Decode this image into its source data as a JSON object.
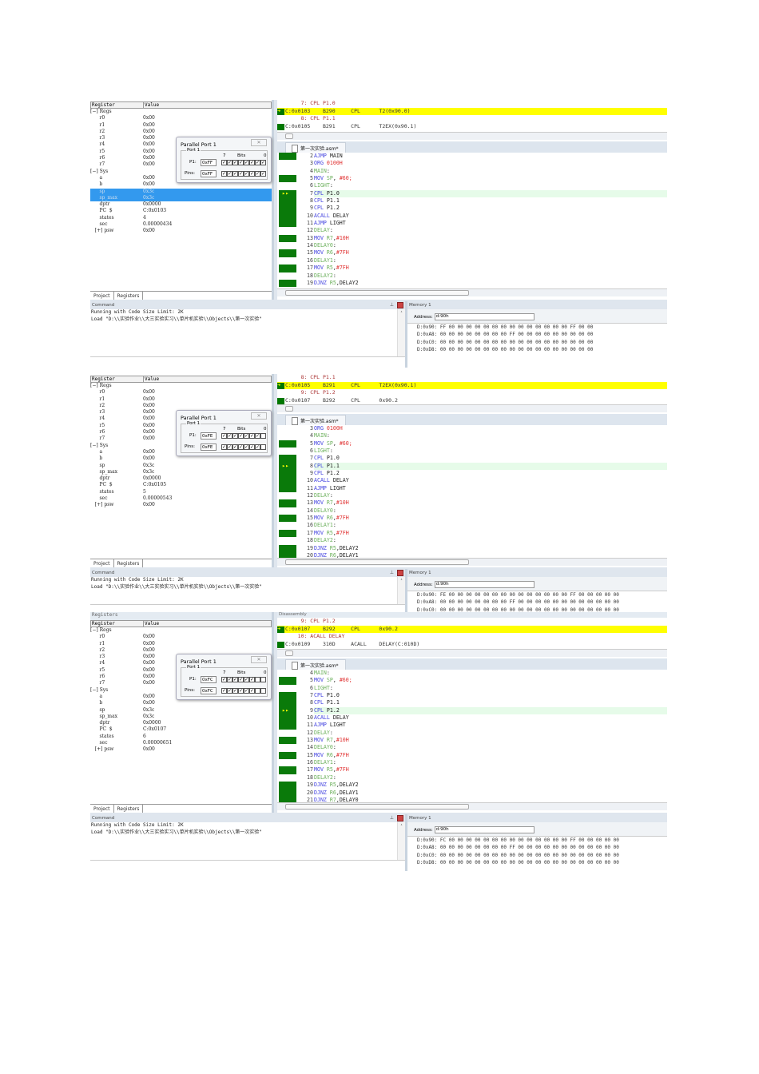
{
  "shared": {
    "register_title": "Registers",
    "register_col": "Register",
    "value_col": "Value",
    "tab_project": "Project",
    "tab_registers": "Registers",
    "parallel_port_title": "Parallel Port 1",
    "port_group": "Port 1",
    "p1_label": "P1:",
    "pins_label": "Pins:",
    "bits_label": "Bits",
    "bit_high": "7",
    "bit_low": "0",
    "editor_tab": "第一次实验.asm*",
    "command_title": "Command",
    "command_lines": [
      "Running with Code Size Limit: 2K",
      "Load \"D:\\\\实验作业\\\\大三实验实习\\\\单片机实验\\\\Objects\\\\第一次实验\""
    ],
    "memory_title": "Memory 1",
    "address_label": "Address:",
    "address_value": "d:90h",
    "disassembly_title": "Disassembly",
    "colors": {
      "current_line": "#ffff00",
      "gutter_exec": "#0a7a0a",
      "keyword": "#4646e0",
      "label": "#6cb05c",
      "number": "#e03030",
      "selection": "#3399ee"
    }
  },
  "panels": [
    {
      "registers": [
        {
          "name": "Regs",
          "value": "",
          "level": 0,
          "expander": "−"
        },
        {
          "name": "r0",
          "value": "0x00",
          "level": 1
        },
        {
          "name": "r1",
          "value": "0x00",
          "level": 1
        },
        {
          "name": "r2",
          "value": "0x00",
          "level": 1
        },
        {
          "name": "r3",
          "value": "0x00",
          "level": 1
        },
        {
          "name": "r4",
          "value": "0x00",
          "level": 1
        },
        {
          "name": "r5",
          "value": "0x00",
          "level": 1
        },
        {
          "name": "r6",
          "value": "0x00",
          "level": 1
        },
        {
          "name": "r7",
          "value": "0x00",
          "level": 1
        },
        {
          "name": "Sys",
          "value": "",
          "level": 0,
          "expander": "−"
        },
        {
          "name": "a",
          "value": "0x00",
          "level": 1
        },
        {
          "name": "b",
          "value": "0x00",
          "level": 1
        },
        {
          "name": "sp",
          "value": "0x3c",
          "level": 1,
          "selected": true
        },
        {
          "name": "sp_max",
          "value": "0x3c",
          "level": 1,
          "selected": true
        },
        {
          "name": "dptr",
          "value": "0x0000",
          "level": 1
        },
        {
          "name": "PC  $",
          "value": "C:0x0103",
          "level": 1
        },
        {
          "name": "states",
          "value": "4",
          "level": 1
        },
        {
          "name": "sec",
          "value": "0.00000434",
          "level": 1
        },
        {
          "name": "psw",
          "value": "0x00",
          "level": 1,
          "expander": "+"
        }
      ],
      "port": {
        "p1": "0xFF",
        "pins": "0xFF",
        "p1_bits": [
          true,
          true,
          true,
          true,
          true,
          true,
          true,
          true
        ],
        "pin_bits": [
          true,
          true,
          true,
          true,
          true,
          true,
          true,
          true
        ]
      },
      "disassembly": [
        {
          "text": "     7: CPL P1.0",
          "kind": "src"
        },
        {
          "text": "C:0x0103    B290     CPL      T2(0x90.0)",
          "kind": "cur"
        },
        {
          "text": "     8: CPL P1.1",
          "kind": "src"
        },
        {
          "text": "C:0x0105    B291     CPL      T2EX(0x90.1)",
          "kind": "asm"
        }
      ],
      "code": [
        {
          "n": "2",
          "text": "AJMP MAIN",
          "exec": true
        },
        {
          "n": "3",
          "text": "ORG 0100H",
          "exec": false
        },
        {
          "n": "4",
          "text": "MAIN:",
          "exec": false
        },
        {
          "n": "5",
          "text": "MOV SP, #60;",
          "exec": true
        },
        {
          "n": "6",
          "text": "LIGHT:",
          "exec": false
        },
        {
          "n": "7",
          "text": "CPL P1.0",
          "exec": true,
          "current": true
        },
        {
          "n": "8",
          "text": "CPL P1.1",
          "exec": true
        },
        {
          "n": "9",
          "text": "CPL P1.2",
          "exec": true
        },
        {
          "n": "10",
          "text": "ACALL DELAY",
          "exec": true
        },
        {
          "n": "11",
          "text": "AJMP LIGHT",
          "exec": true
        },
        {
          "n": "12",
          "text": "DELAY:",
          "exec": false
        },
        {
          "n": "13",
          "text": "MOV R7,#10H",
          "exec": true
        },
        {
          "n": "14",
          "text": "DELAY0:",
          "exec": false
        },
        {
          "n": "15",
          "text": "MOV R6,#7FH",
          "exec": true
        },
        {
          "n": "16",
          "text": "DELAY1:",
          "exec": false
        },
        {
          "n": "17",
          "text": "MOV R5,#7FH",
          "exec": true
        },
        {
          "n": "18",
          "text": "DELAY2:",
          "exec": false
        },
        {
          "n": "19",
          "text": "DJNZ R5,DELAY2",
          "exec": true
        }
      ],
      "memory": [
        "D:0x90: FF 00 00 00 00 00 00 00 00 00 00 00 00 00 00 FF 00 00",
        "D:0xA8: 00 00 00 00 00 00 00 00 FF 00 00 00 00 00 00 00 00 00",
        "D:0xC0: 00 00 00 00 00 00 00 00 00 00 00 00 00 00 00 00 00 00",
        "D:0xD8: 00 00 00 00 00 00 00 00 00 00 00 00 00 00 00 00 00 00"
      ]
    },
    {
      "registers": [
        {
          "name": "Regs",
          "value": "",
          "level": 0,
          "expander": "−"
        },
        {
          "name": "r0",
          "value": "0x00",
          "level": 1
        },
        {
          "name": "r1",
          "value": "0x00",
          "level": 1
        },
        {
          "name": "r2",
          "value": "0x00",
          "level": 1
        },
        {
          "name": "r3",
          "value": "0x00",
          "level": 1
        },
        {
          "name": "r4",
          "value": "0x00",
          "level": 1
        },
        {
          "name": "r5",
          "value": "0x00",
          "level": 1
        },
        {
          "name": "r6",
          "value": "0x00",
          "level": 1
        },
        {
          "name": "r7",
          "value": "0x00",
          "level": 1
        },
        {
          "name": "Sys",
          "value": "",
          "level": 0,
          "expander": "−"
        },
        {
          "name": "a",
          "value": "0x00",
          "level": 1
        },
        {
          "name": "b",
          "value": "0x00",
          "level": 1
        },
        {
          "name": "sp",
          "value": "0x3c",
          "level": 1
        },
        {
          "name": "sp_max",
          "value": "0x3c",
          "level": 1
        },
        {
          "name": "dptr",
          "value": "0x0000",
          "level": 1
        },
        {
          "name": "PC  $",
          "value": "C:0x0105",
          "level": 1
        },
        {
          "name": "states",
          "value": "5",
          "level": 1
        },
        {
          "name": "sec",
          "value": "0.00000543",
          "level": 1
        },
        {
          "name": "psw",
          "value": "0x00",
          "level": 1,
          "expander": "+"
        }
      ],
      "port": {
        "p1": "0xFE",
        "pins": "0xFE",
        "p1_bits": [
          true,
          true,
          true,
          true,
          true,
          true,
          true,
          false
        ],
        "pin_bits": [
          true,
          true,
          true,
          true,
          true,
          true,
          true,
          false
        ]
      },
      "disassembly": [
        {
          "text": "     8: CPL P1.1",
          "kind": "src"
        },
        {
          "text": "C:0x0105    B291     CPL      T2EX(0x90.1)",
          "kind": "cur"
        },
        {
          "text": "     9: CPL P1.2",
          "kind": "src"
        },
        {
          "text": "C:0x0107    B292     CPL      0x90.2",
          "kind": "asm"
        }
      ],
      "code": [
        {
          "n": "3",
          "text": "ORG 0100H",
          "exec": false
        },
        {
          "n": "4",
          "text": "MAIN:",
          "exec": false
        },
        {
          "n": "5",
          "text": "MOV SP, #60;",
          "exec": true
        },
        {
          "n": "6",
          "text": "LIGHT:",
          "exec": false
        },
        {
          "n": "7",
          "text": "CPL P1.0",
          "exec": true
        },
        {
          "n": "8",
          "text": "CPL P1.1",
          "exec": true,
          "current": true
        },
        {
          "n": "9",
          "text": "CPL P1.2",
          "exec": true
        },
        {
          "n": "10",
          "text": "ACALL DELAY",
          "exec": true
        },
        {
          "n": "11",
          "text": "AJMP LIGHT",
          "exec": true
        },
        {
          "n": "12",
          "text": "DELAY:",
          "exec": false
        },
        {
          "n": "13",
          "text": "MOV R7,#10H",
          "exec": true
        },
        {
          "n": "14",
          "text": "DELAY0:",
          "exec": false
        },
        {
          "n": "15",
          "text": "MOV R6,#7FH",
          "exec": true
        },
        {
          "n": "16",
          "text": "DELAY1:",
          "exec": false
        },
        {
          "n": "17",
          "text": "MOV R5,#7FH",
          "exec": true
        },
        {
          "n": "18",
          "text": "DELAY2:",
          "exec": false
        },
        {
          "n": "19",
          "text": "DJNZ R5,DELAY2",
          "exec": true
        },
        {
          "n": "20",
          "text": "DJNZ R6,DELAY1",
          "exec": true
        }
      ],
      "memory": [
        "D:0x90: FE 00 00 00 00 00 00 00 00 00 00 00 00 00 00 FF 00 00 00 00 00",
        "D:0xA8: 00 00 00 00 00 00 00 00 FF 00 00 00 00 00 00 00 00 00 00 00 00",
        "D:0xC0: 00 00 00 00 00 00 00 00 00 00 00 00 00 00 00 00 00 00 00 00 00"
      ]
    },
    {
      "registers": [
        {
          "name": "Regs",
          "value": "",
          "level": 0,
          "expander": "−"
        },
        {
          "name": "r0",
          "value": "0x00",
          "level": 1
        },
        {
          "name": "r1",
          "value": "0x00",
          "level": 1
        },
        {
          "name": "r2",
          "value": "0x00",
          "level": 1
        },
        {
          "name": "r3",
          "value": "0x00",
          "level": 1
        },
        {
          "name": "r4",
          "value": "0x00",
          "level": 1
        },
        {
          "name": "r5",
          "value": "0x00",
          "level": 1
        },
        {
          "name": "r6",
          "value": "0x00",
          "level": 1
        },
        {
          "name": "r7",
          "value": "0x00",
          "level": 1
        },
        {
          "name": "Sys",
          "value": "",
          "level": 0,
          "expander": "−"
        },
        {
          "name": "a",
          "value": "0x00",
          "level": 1
        },
        {
          "name": "b",
          "value": "0x00",
          "level": 1
        },
        {
          "name": "sp",
          "value": "0x3c",
          "level": 1
        },
        {
          "name": "sp_max",
          "value": "0x3c",
          "level": 1
        },
        {
          "name": "dptr",
          "value": "0x0000",
          "level": 1
        },
        {
          "name": "PC  $",
          "value": "C:0x0107",
          "level": 1
        },
        {
          "name": "states",
          "value": "6",
          "level": 1
        },
        {
          "name": "sec",
          "value": "0.00000651",
          "level": 1
        },
        {
          "name": "psw",
          "value": "0x00",
          "level": 1,
          "expander": "+"
        }
      ],
      "port": {
        "p1": "0xFC",
        "pins": "0xFC",
        "p1_bits": [
          true,
          true,
          true,
          true,
          true,
          true,
          false,
          false
        ],
        "pin_bits": [
          true,
          true,
          true,
          true,
          true,
          true,
          false,
          false
        ]
      },
      "disassembly": [
        {
          "text": "     9: CPL P1.2",
          "kind": "src"
        },
        {
          "text": "C:0x0107    B292     CPL      0x90.2",
          "kind": "cur"
        },
        {
          "text": "    10: ACALL DELAY",
          "kind": "src"
        },
        {
          "text": "C:0x0109    310D     ACALL    DELAY(C:010D)",
          "kind": "asm"
        }
      ],
      "code": [
        {
          "n": "4",
          "text": "MAIN:",
          "exec": false
        },
        {
          "n": "5",
          "text": "MOV SP, #60;",
          "exec": true
        },
        {
          "n": "6",
          "text": "LIGHT:",
          "exec": false
        },
        {
          "n": "7",
          "text": "CPL P1.0",
          "exec": true
        },
        {
          "n": "8",
          "text": "CPL P1.1",
          "exec": true
        },
        {
          "n": "9",
          "text": "CPL P1.2",
          "exec": true,
          "current": true
        },
        {
          "n": "10",
          "text": "ACALL DELAY",
          "exec": true
        },
        {
          "n": "11",
          "text": "AJMP LIGHT",
          "exec": true
        },
        {
          "n": "12",
          "text": "DELAY:",
          "exec": false
        },
        {
          "n": "13",
          "text": "MOV R7,#10H",
          "exec": true
        },
        {
          "n": "14",
          "text": "DELAY0:",
          "exec": false
        },
        {
          "n": "15",
          "text": "MOV R6,#7FH",
          "exec": true
        },
        {
          "n": "16",
          "text": "DELAY1:",
          "exec": false
        },
        {
          "n": "17",
          "text": "MOV R5,#7FH",
          "exec": true
        },
        {
          "n": "18",
          "text": "DELAY2:",
          "exec": false
        },
        {
          "n": "19",
          "text": "DJNZ R5,DELAY2",
          "exec": true
        },
        {
          "n": "20",
          "text": "DJNZ R6,DELAY1",
          "exec": true
        },
        {
          "n": "21",
          "text": "DJNZ R7,DELAY0",
          "exec": true
        }
      ],
      "memory": [
        "D:0x90: FC 00 00 00 00 00 00 00 00 00 00 00 00 00 00 FF 00 00 00 00 00",
        "D:0xA8: 00 00 00 00 00 00 00 00 FF 00 00 00 00 00 00 00 00 00 00 00 00",
        "D:0xC0: 00 00 00 00 00 00 00 00 00 00 00 00 00 00 00 00 00 00 00 00 00",
        "D:0xD8: 00 00 00 00 00 00 00 00 00 00 00 00 00 00 00 00 00 00 00 00 00"
      ]
    }
  ]
}
